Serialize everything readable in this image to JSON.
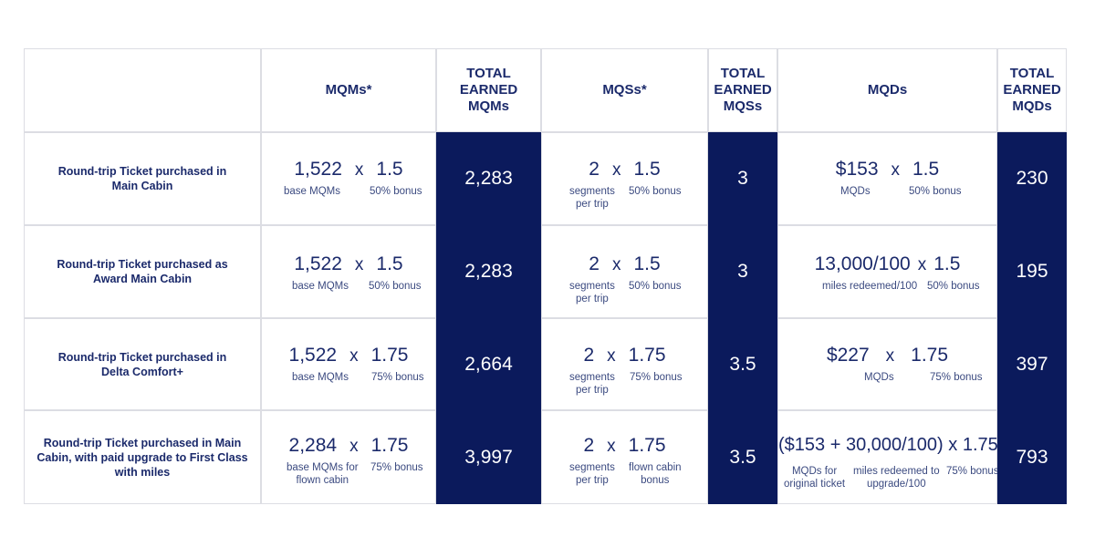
{
  "headers": {
    "mqms": "MQMs*",
    "total_mqms": [
      "TOTAL",
      "EARNED",
      "MQMs"
    ],
    "mqss": "MQSs*",
    "total_mqss": [
      "TOTAL",
      "EARNED",
      "MQSs"
    ],
    "mqds": "MQDs",
    "total_mqds": [
      "TOTAL",
      "EARNED",
      "MQDs"
    ]
  },
  "rows": [
    {
      "label": [
        "Round-trip Ticket purchased in",
        "Main Cabin"
      ],
      "mqm_a": "1,522",
      "mqm_x": "x",
      "mqm_b": "1.5",
      "mqm_a_sub": [
        "base MQMs"
      ],
      "mqm_b_sub": "50% bonus",
      "total_mqm": "2,283",
      "mqs_a": "2",
      "mqs_x": "x",
      "mqs_b": "1.5",
      "mqs_a_sub": [
        "segments",
        "per trip"
      ],
      "mqs_b_sub": [
        "50% bonus"
      ],
      "total_mqs": "3",
      "mqd_a": "$153",
      "mqd_x": "x",
      "mqd_b": "1.5",
      "mqd_a_sub": [
        "MQDs"
      ],
      "mqd_b_sub": [
        "50% bonus"
      ],
      "total_mqd": "230"
    },
    {
      "label": [
        "Round-trip Ticket purchased as",
        "Award Main Cabin"
      ],
      "mqm_a": "1,522",
      "mqm_x": "x",
      "mqm_b": "1.5",
      "mqm_a_sub": [
        "base MQMs"
      ],
      "mqm_b_sub": "50% bonus",
      "total_mqm": "2,283",
      "mqs_a": "2",
      "mqs_x": "x",
      "mqs_b": "1.5",
      "mqs_a_sub": [
        "segments",
        "per trip"
      ],
      "mqs_b_sub": [
        "50% bonus"
      ],
      "total_mqs": "3",
      "mqd_a": "13,000/100",
      "mqd_x": "x",
      "mqd_b": "1.5",
      "mqd_a_sub": [
        "miles redeemed/100"
      ],
      "mqd_b_sub": [
        "50% bonus"
      ],
      "total_mqd": "195"
    },
    {
      "label": [
        "Round-trip Ticket purchased in",
        "Delta Comfort+"
      ],
      "mqm_a": "1,522",
      "mqm_x": "x",
      "mqm_b": "1.75",
      "mqm_a_sub": [
        "base MQMs"
      ],
      "mqm_b_sub": "75% bonus",
      "total_mqm": "2,664",
      "mqs_a": "2",
      "mqs_x": "x",
      "mqs_b": "1.75",
      "mqs_a_sub": [
        "segments",
        "per trip"
      ],
      "mqs_b_sub": [
        "75% bonus"
      ],
      "total_mqs": "3.5",
      "mqd_a": "$227",
      "mqd_x": "x",
      "mqd_b": "1.75",
      "mqd_a_sub": [
        "MQDs"
      ],
      "mqd_b_sub": [
        "75% bonus"
      ],
      "total_mqd": "397"
    },
    {
      "label": [
        "Round-trip Ticket purchased in Main",
        "Cabin, with paid upgrade to First Class",
        "with miles"
      ],
      "mqm_a": "2,284",
      "mqm_x": "x",
      "mqm_b": "1.75",
      "mqm_a_sub": [
        "base MQMs for",
        "flown cabin"
      ],
      "mqm_b_sub": "75% bonus",
      "total_mqm": "3,997",
      "mqs_a": "2",
      "mqs_x": "x",
      "mqs_b": "1.75",
      "mqs_a_sub": [
        "segments",
        "per trip"
      ],
      "mqs_b_sub": [
        "flown cabin",
        "bonus"
      ],
      "total_mqs": "3.5",
      "mqd_formula": "($153 + 30,000/100) x 1.75",
      "mqd_subs": [
        [
          "MQDs for",
          "original ticket"
        ],
        [
          "miles redeemed to",
          "upgrade/100"
        ],
        [
          "75% bonus"
        ]
      ],
      "total_mqd": "793"
    }
  ]
}
